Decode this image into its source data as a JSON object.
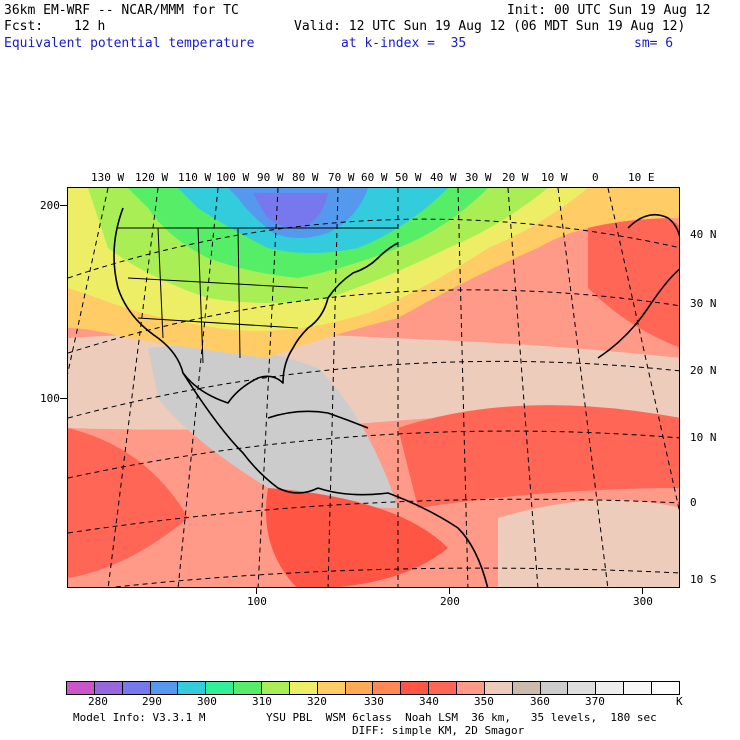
{
  "header": {
    "model_title": "36km EM-WRF -- NCAR/MMM for TC",
    "init": "Init: 00 UTC Sun 19 Aug 12",
    "fcst_label": "Fcst:",
    "fcst_value": "12 h",
    "valid": "Valid: 12 UTC Sun 19 Aug 12 (06 MDT Sun 19 Aug 12)",
    "field_name": "Equivalent potential temperature",
    "level": "at k-index =  35",
    "smoothing": "sm= 6"
  },
  "map": {
    "lon_labels": [
      "130 W",
      "120 W",
      "110 W",
      "100 W",
      "90 W",
      "80 W",
      "70 W",
      "60 W",
      "50 W",
      "40 W",
      "30 W",
      "20 W",
      "10 W",
      "0",
      "10 E"
    ],
    "lat_labels": [
      "40 N",
      "30 N",
      "20 N",
      "10 N",
      "0",
      "10 S"
    ],
    "grid_y_labels": [
      "200",
      "100"
    ],
    "grid_x_labels": [
      "100",
      "200",
      "300"
    ]
  },
  "colorbar": {
    "colors": [
      "#cc55cc",
      "#9966dd",
      "#7777ee",
      "#5599ee",
      "#33ccdd",
      "#33ee99",
      "#55ee66",
      "#aaee55",
      "#eeee66",
      "#ffcc66",
      "#ffaa55",
      "#ff8855",
      "#ff5544",
      "#ff6655",
      "#ff9988",
      "#eeccbb",
      "#ccbbaa",
      "#cccccc",
      "#dddddd",
      "#eeeeee",
      "#f8f8f8",
      "#ffffff"
    ],
    "labels": [
      "280",
      "290",
      "300",
      "310",
      "320",
      "330",
      "340",
      "350",
      "360",
      "370"
    ],
    "unit": "K"
  },
  "footer": {
    "model_info": "Model Info: V3.3.1 M",
    "physics": "YSU PBL  WSM 6class  Noah LSM  36 km,   35 levels,  180 sec",
    "diffusion": "DIFF: simple KM, 2D Smagor"
  }
}
